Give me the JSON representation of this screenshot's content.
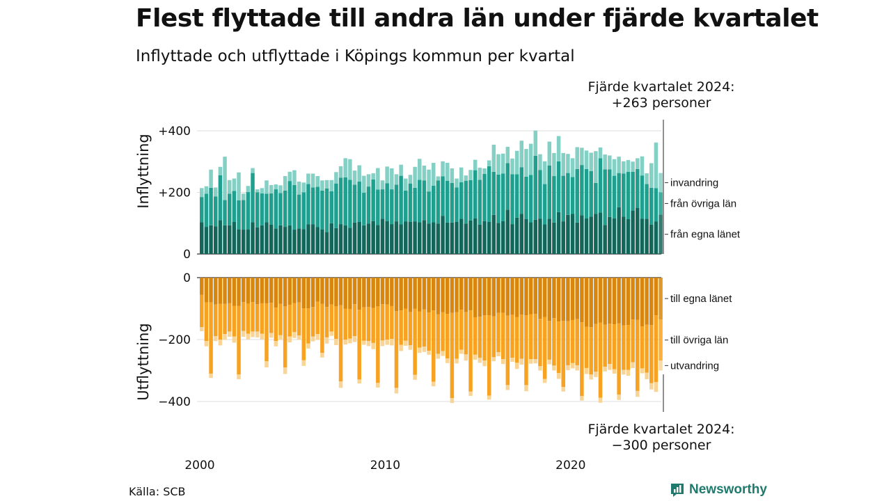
{
  "header": {
    "title": "Flest flyttade till andra län under fjärde kvartalet",
    "subtitle": "Inflyttade och utflyttade i Köpings kommun per kvartal"
  },
  "annotations": {
    "top_line1": "Fjärde kvartalet 2024:",
    "top_line2": "+263 personer",
    "bottom_line1": "Fjärde kvartalet 2024:",
    "bottom_line2": "−300 personer"
  },
  "footer": {
    "source": "Källa: SCB",
    "logo": "Newsworthy"
  },
  "colors": {
    "in_egna": "#12665a",
    "in_ovriga": "#1f9f8d",
    "in_invandring": "#85d0c5",
    "out_egna": "#d8860e",
    "out_ovriga": "#f7a220",
    "out_utvandring": "#f8d596",
    "grid": "#dddddd",
    "accent": "#1f7a6e"
  },
  "chart_data": {
    "type": "bar",
    "stacked": true,
    "x_start": "2000 Q1",
    "x_end": "2024 Q4",
    "x_ticks": [
      "2000",
      "2010",
      "2020"
    ],
    "panels": [
      {
        "name": "inflyttning",
        "ylabel": "Inflyttning",
        "ylim": [
          0,
          400
        ],
        "yticks": [
          "0",
          "+200",
          "+400"
        ],
        "series": [
          {
            "name": "från egna länet",
            "values": [
              103,
              88,
              93,
              90,
              110,
              93,
              93,
              104,
              80,
              79,
              80,
              103,
              86,
              93,
              103,
              95,
              83,
              93,
              88,
              93,
              79,
              83,
              81,
              96,
              96,
              87,
              80,
              71,
              100,
              84,
              97,
              93,
              85,
              102,
              104,
              93,
              99,
              107,
              94,
              114,
              107,
              97,
              106,
              96,
              106,
              104,
              106,
              103,
              110,
              99,
              103,
              99,
              124,
              102,
              102,
              104,
              114,
              99,
              109,
              116,
              95,
              107,
              104,
              127,
              101,
              107,
              144,
              97,
              118,
              130,
              113,
              103,
              111,
              115,
              96,
              114,
              102,
              136,
              106,
              127,
              130,
              102,
              126,
              116,
              121,
              130,
              135,
              94,
              120,
              116,
              152,
              121,
              113,
              141,
              150,
              115,
              114,
              95,
              106,
              128
            ]
          },
          {
            "name": "från övriga län",
            "values": [
              82,
              108,
              122,
              97,
              146,
              82,
              103,
              101,
              94,
              96,
              121,
              160,
              114,
              104,
              93,
              102,
              127,
              105,
              118,
              144,
              145,
              110,
              119,
              131,
              120,
              131,
              126,
              142,
              104,
              145,
              151,
              156,
              156,
              123,
              131,
              106,
              120,
              135,
              115,
              96,
              123,
              113,
              119,
              158,
              100,
              125,
              109,
              138,
              129,
              104,
              119,
              140,
              128,
              136,
              129,
              112,
              119,
              139,
              131,
              156,
              146,
              153,
              181,
              140,
              157,
              154,
              151,
              162,
              141,
              152,
              138,
              154,
              208,
              158,
              131,
              173,
              151,
              165,
              148,
              136,
              120,
              174,
              163,
              160,
              148,
              101,
              176,
              181,
              155,
              138,
              111,
              140,
              154,
              126,
              126,
              140,
              113,
              120,
              108,
              72
            ]
          },
          {
            "name": "invandring",
            "values": [
              29,
              24,
              59,
              29,
              27,
              141,
              44,
              40,
              91,
              21,
              20,
              16,
              10,
              17,
              43,
              27,
              16,
              25,
              47,
              30,
              48,
              42,
              32,
              34,
              45,
              35,
              33,
              27,
              36,
              37,
              37,
              62,
              67,
              46,
              53,
              55,
              40,
              20,
              70,
              29,
              54,
              68,
              34,
              36,
              39,
              28,
              68,
              68,
              48,
              71,
              74,
              13,
              49,
              58,
              47,
              29,
              48,
              17,
              33,
              34,
              39,
              18,
              19,
              88,
              66,
              65,
              53,
              51,
              76,
              86,
              90,
              101,
              82,
              51,
              74,
              78,
              75,
              82,
              74,
              62,
              61,
              71,
              56,
              60,
              60,
              103,
              35,
              48,
              45,
              54,
              53,
              40,
              38,
              33,
              35,
              62,
              35,
              80,
              148,
              63
            ]
          }
        ]
      },
      {
        "name": "utflyttning",
        "ylabel": "Utflyttning",
        "ylim": [
          -400,
          0
        ],
        "yticks": [
          "0",
          "−200",
          "−400"
        ],
        "series": [
          {
            "name": "till egna länet",
            "values": [
              -55,
              -80,
              -80,
              -87,
              -85,
              -85,
              -82,
              -91,
              -91,
              -79,
              -84,
              -79,
              -86,
              -83,
              -83,
              -81,
              -97,
              -85,
              -93,
              -88,
              -82,
              -80,
              -99,
              -99,
              -95,
              -78,
              -85,
              -95,
              -87,
              -93,
              -89,
              -100,
              -101,
              -86,
              -104,
              -96,
              -95,
              -98,
              -93,
              -86,
              -87,
              -92,
              -108,
              -106,
              -100,
              -111,
              -100,
              -109,
              -103,
              -113,
              -106,
              -118,
              -112,
              -117,
              -114,
              -112,
              -104,
              -111,
              -106,
              -128,
              -126,
              -122,
              -122,
              -125,
              -114,
              -114,
              -123,
              -120,
              -127,
              -119,
              -122,
              -118,
              -117,
              -133,
              -127,
              -140,
              -131,
              -142,
              -140,
              -141,
              -137,
              -134,
              -144,
              -159,
              -160,
              -150,
              -145,
              -152,
              -149,
              -151,
              -148,
              -154,
              -153,
              -135,
              -136,
              -158,
              -152,
              -153,
              -122,
              -135
            ]
          },
          {
            "name": "till övriga län",
            "values": [
              -105,
              -125,
              -230,
              -102,
              -115,
              -97,
              -92,
              -99,
              -222,
              -93,
              -97,
              -95,
              -88,
              -98,
              -187,
              -98,
              -108,
              -101,
              -197,
              -102,
              -94,
              -107,
              -168,
              -114,
              -95,
              -104,
              -158,
              -98,
              -87,
              -105,
              -246,
              -100,
              -96,
              -103,
              -225,
              -108,
              -110,
              -113,
              -247,
              -117,
              -113,
              -106,
              -248,
              -111,
              -104,
              -107,
              -214,
              -117,
              -120,
              -123,
              -230,
              -128,
              -125,
              -144,
              -275,
              -150,
              -129,
              -137,
              -262,
              -121,
              -133,
              -146,
              -259,
              -132,
              -127,
              -149,
              -224,
              -139,
              -148,
              -143,
              -225,
              -145,
              -146,
              -153,
              -200,
              -125,
              -153,
              -166,
              -213,
              -142,
              -139,
              -149,
              -238,
              -133,
              -153,
              -154,
              -243,
              -136,
              -130,
              -145,
              -230,
              -144,
              -145,
              -138,
              -230,
              -135,
              -155,
              -188,
              -215,
              -133
            ]
          },
          {
            "name": "utvandring",
            "values": [
              -13,
              -17,
              -14,
              -16,
              -19,
              -19,
              -17,
              -20,
              -15,
              -19,
              -18,
              -18,
              -19,
              -18,
              -20,
              -15,
              -17,
              -15,
              -21,
              -19,
              -19,
              -14,
              -18,
              -16,
              -16,
              -19,
              -15,
              -20,
              -14,
              -20,
              -21,
              -16,
              -15,
              -19,
              -13,
              -13,
              -16,
              -20,
              -15,
              -18,
              -17,
              -21,
              -18,
              -20,
              -16,
              -15,
              -16,
              -17,
              -17,
              -13,
              -15,
              -16,
              -16,
              -15,
              -16,
              -15,
              -13,
              -20,
              -14,
              -16,
              -16,
              -18,
              -13,
              -13,
              -13,
              -16,
              -16,
              -13,
              -20,
              -19,
              -20,
              -15,
              -14,
              -14,
              -13,
              -15,
              -16,
              -19,
              -15,
              -16,
              -17,
              -17,
              -15,
              -19,
              -16,
              -17,
              -16,
              -15,
              -19,
              -14,
              -17,
              -15,
              -19,
              -19,
              -19,
              -16,
              -21,
              -20,
              -32,
              -32
            ]
          }
        ]
      }
    ]
  }
}
